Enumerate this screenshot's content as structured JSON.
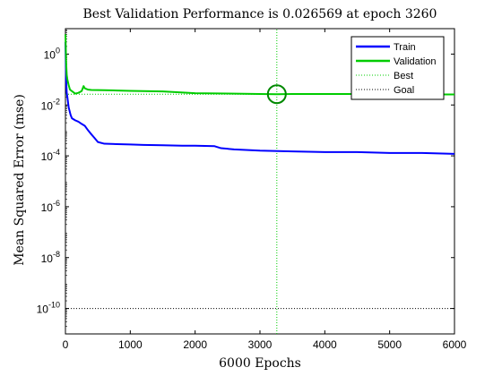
{
  "chart_data": {
    "type": "line",
    "title": "Best Validation Performance is 0.026569 at epoch 3260",
    "xlabel": "6000 Epochs",
    "ylabel": "Mean Squared Error  (mse)",
    "yscale": "log",
    "xlim": [
      0,
      6000
    ],
    "ylim": [
      1e-11,
      10
    ],
    "xticks": [
      0,
      1000,
      2000,
      3000,
      4000,
      5000,
      6000
    ],
    "xtick_labels": [
      "0",
      "1000",
      "2000",
      "3000",
      "4000",
      "5000",
      "6000"
    ],
    "yticks": [
      {
        "value": 1,
        "base": "10",
        "exp": "0"
      },
      {
        "value": 0.01,
        "base": "10",
        "exp": "-2"
      },
      {
        "value": 0.0001,
        "base": "10",
        "exp": "-4"
      },
      {
        "value": 1e-06,
        "base": "10",
        "exp": "-6"
      },
      {
        "value": 1e-08,
        "base": "10",
        "exp": "-8"
      },
      {
        "value": 1e-10,
        "base": "10",
        "exp": "-10"
      }
    ],
    "grid": false,
    "legend_position": "top-right",
    "series": [
      {
        "name": "Train",
        "color": "#0000ff",
        "style": "solid",
        "x": [
          0,
          5,
          10,
          20,
          30,
          50,
          80,
          100,
          150,
          200,
          250,
          300,
          350,
          400,
          450,
          500,
          600,
          800,
          1000,
          1200,
          1500,
          1800,
          2000,
          2300,
          2400,
          2600,
          3000,
          3500,
          4000,
          4500,
          5000,
          5500,
          6000
        ],
        "y": [
          3,
          0.5,
          0.1,
          0.03,
          0.02,
          0.008,
          0.004,
          0.003,
          0.0025,
          0.0022,
          0.0018,
          0.0015,
          0.001,
          0.0007,
          0.0005,
          0.00035,
          0.0003,
          0.00029,
          0.00028,
          0.00027,
          0.00026,
          0.00025,
          0.00025,
          0.00024,
          0.0002,
          0.00018,
          0.00016,
          0.00015,
          0.00014,
          0.00014,
          0.00013,
          0.00013,
          0.00012
        ]
      },
      {
        "name": "Validation",
        "color": "#00cc00",
        "style": "solid",
        "x": [
          0,
          5,
          10,
          20,
          30,
          50,
          70,
          100,
          150,
          200,
          250,
          280,
          300,
          350,
          400,
          600,
          800,
          1000,
          1500,
          2000,
          2500,
          3000,
          3260,
          3500,
          4000,
          4500,
          5000,
          5500,
          6000
        ],
        "y": [
          6,
          2,
          0.5,
          0.15,
          0.1,
          0.06,
          0.04,
          0.035,
          0.028,
          0.03,
          0.035,
          0.055,
          0.045,
          0.04,
          0.039,
          0.038,
          0.037,
          0.036,
          0.034,
          0.029,
          0.028,
          0.027,
          0.026569,
          0.027,
          0.027,
          0.027,
          0.027,
          0.026,
          0.026
        ]
      },
      {
        "name": "Best",
        "color": "#00cc00",
        "style": "dotted",
        "x": [
          3260,
          3260
        ],
        "y": [
          1e-11,
          10
        ]
      },
      {
        "name": "Goal",
        "color": "#000000",
        "style": "dotted",
        "x": [
          0,
          6000
        ],
        "y": [
          1e-10,
          1e-10
        ]
      }
    ],
    "best_point": {
      "x": 3260,
      "y": 0.026569
    },
    "validation_hline": {
      "y": 0.026569,
      "color": "#00cc00",
      "style": "dotted"
    }
  }
}
